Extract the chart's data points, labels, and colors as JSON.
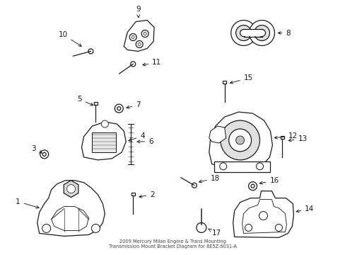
{
  "bg_color": "#ffffff",
  "line_color": "#1a1a1a",
  "title1": "2009 Mercury Milan Engine & Trans Mounting",
  "title2": "Transmission Mount Bracket Diagram for 8E5Z-6031-A"
}
